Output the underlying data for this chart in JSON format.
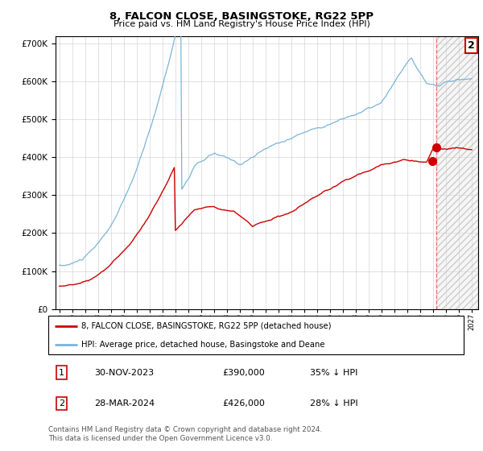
{
  "title": "8, FALCON CLOSE, BASINGSTOKE, RG22 5PP",
  "subtitle": "Price paid vs. HM Land Registry's House Price Index (HPI)",
  "hpi_label": "HPI: Average price, detached house, Basingstoke and Deane",
  "price_label": "8, FALCON CLOSE, BASINGSTOKE, RG22 5PP (detached house)",
  "sale1_date": "30-NOV-2023",
  "sale1_price": 390000,
  "sale1_pct": "35% ↓ HPI",
  "sale2_date": "28-MAR-2024",
  "sale2_price": 426000,
  "sale2_pct": "28% ↓ HPI",
  "footer": "Contains HM Land Registry data © Crown copyright and database right 2024.\nThis data is licensed under the Open Government Licence v3.0.",
  "hpi_color": "#7ab5d8",
  "price_color": "#cc0000",
  "dashed_line_color": "#ff5555",
  "ylim": [
    0,
    720000
  ],
  "yticks": [
    0,
    100000,
    200000,
    300000,
    400000,
    500000,
    600000,
    700000
  ],
  "start_year": 1995,
  "end_year": 2027,
  "cutoff_year": 2024.25,
  "sale1_x": 2023.9167,
  "sale2_x": 2024.25
}
